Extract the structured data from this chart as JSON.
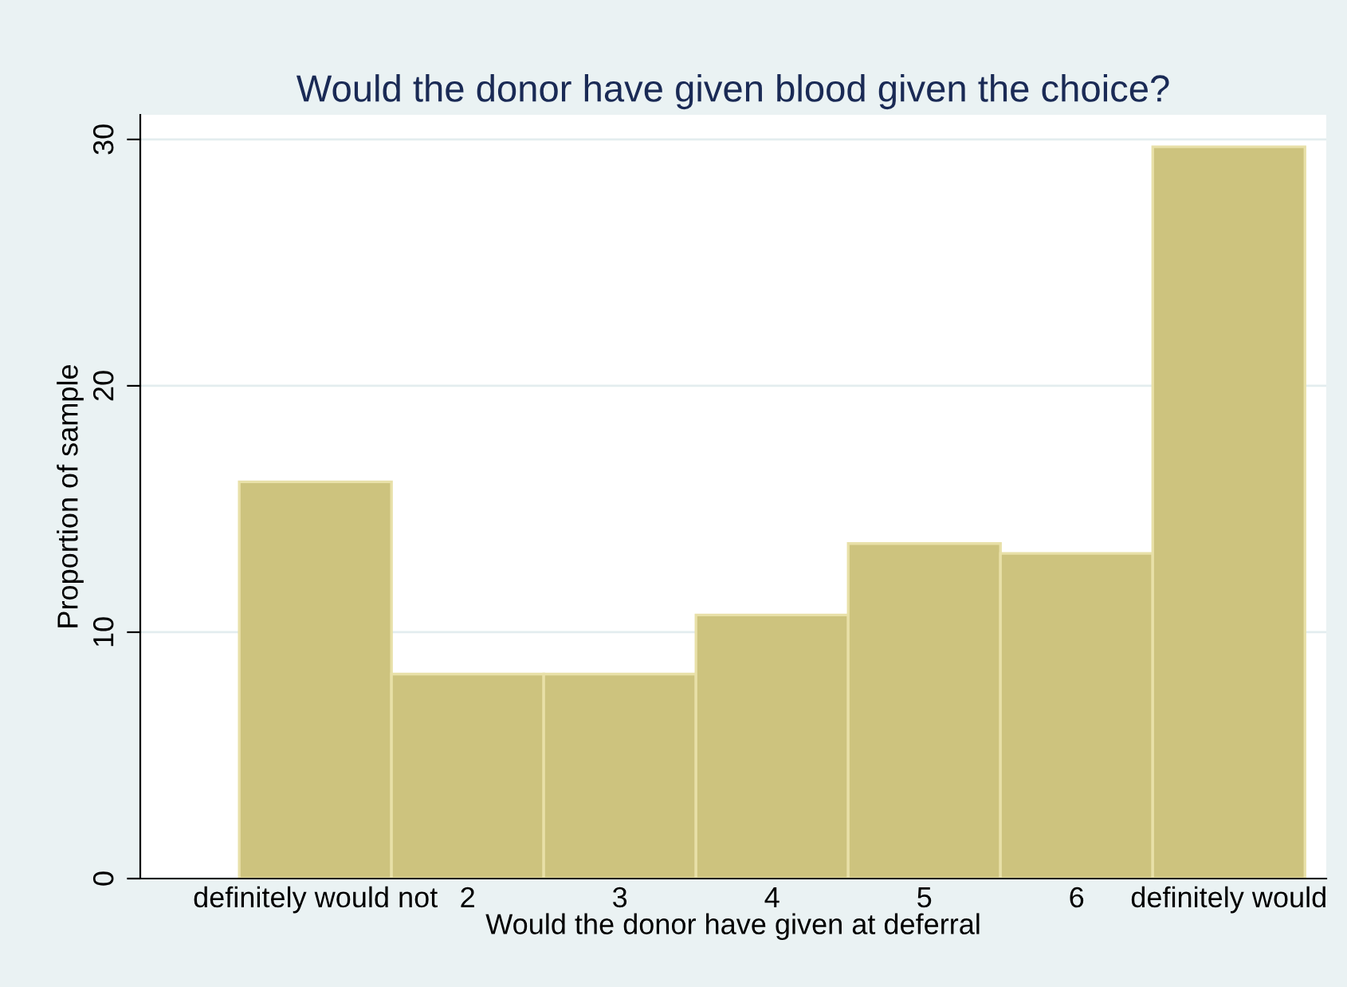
{
  "chart_data": {
    "type": "histogram",
    "title": "Would the donor have given blood given the choice?",
    "xlabel": "Would the donor have given at deferral",
    "ylabel": "Proportion of sample",
    "bins": [
      0.5,
      1.5,
      2.5,
      3.5,
      4.5,
      5.5,
      6.5,
      7.5
    ],
    "values": [
      16.1,
      8.3,
      8.3,
      10.7,
      13.6,
      13.2,
      29.7
    ],
    "color": "#cdc37e",
    "xlim": [
      -0.15,
      7.64
    ],
    "ylim": [
      0,
      31
    ],
    "xticks": [
      {
        "value": 1,
        "label": "definitely would not"
      },
      2,
      3,
      4,
      5,
      6,
      {
        "value": 7,
        "label": "definitely would"
      }
    ],
    "yticks": [
      0,
      10,
      20,
      30
    ],
    "grid": "y"
  }
}
